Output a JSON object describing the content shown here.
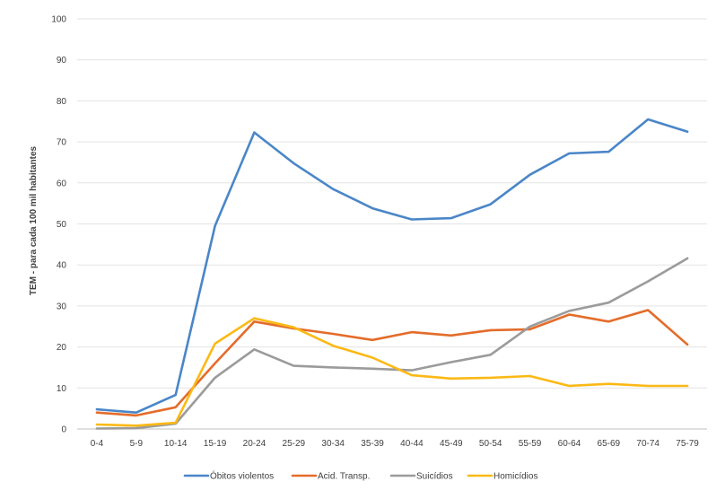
{
  "chart_data": {
    "type": "line",
    "title": "",
    "xlabel": "",
    "ylabel": "TEM - para cada 100 mil habitantes",
    "ylim": [
      0,
      100
    ],
    "yticks": [
      0,
      10,
      20,
      30,
      40,
      50,
      60,
      70,
      80,
      90,
      100
    ],
    "grid": true,
    "legend_position": "bottom",
    "categories": [
      "0-4",
      "5-9",
      "10-14",
      "15-19",
      "20-24",
      "25-29",
      "30-34",
      "35-39",
      "40-44",
      "45-49",
      "50-54",
      "55-59",
      "60-64",
      "65-69",
      "70-74",
      "75-79"
    ],
    "series": [
      {
        "name": "Óbitos violentos",
        "color": "#4a86c8",
        "values": [
          4.8,
          4.0,
          8.3,
          49.5,
          72.3,
          64.8,
          58.5,
          53.8,
          51.1,
          51.4,
          54.8,
          62.0,
          67.2,
          67.6,
          75.5,
          72.5
        ]
      },
      {
        "name": "Acid. Transp.",
        "color": "#e46c2a",
        "values": [
          4.0,
          3.3,
          5.3,
          16.0,
          26.2,
          24.5,
          23.2,
          21.7,
          23.6,
          22.8,
          24.1,
          24.3,
          27.9,
          26.2,
          29.0,
          20.6
        ]
      },
      {
        "name": "Suicídios",
        "color": "#9b9b9b",
        "values": [
          0.1,
          0.2,
          1.3,
          12.5,
          19.4,
          15.4,
          15.0,
          14.7,
          14.3,
          16.3,
          18.1,
          25.0,
          28.8,
          30.8,
          36.0,
          41.6
        ]
      },
      {
        "name": "Homicídios",
        "color": "#fbb915",
        "values": [
          1.1,
          0.8,
          1.5,
          20.8,
          27.0,
          24.8,
          20.3,
          17.4,
          13.1,
          12.3,
          12.5,
          12.9,
          10.5,
          11.0,
          10.5,
          10.5
        ]
      }
    ]
  }
}
